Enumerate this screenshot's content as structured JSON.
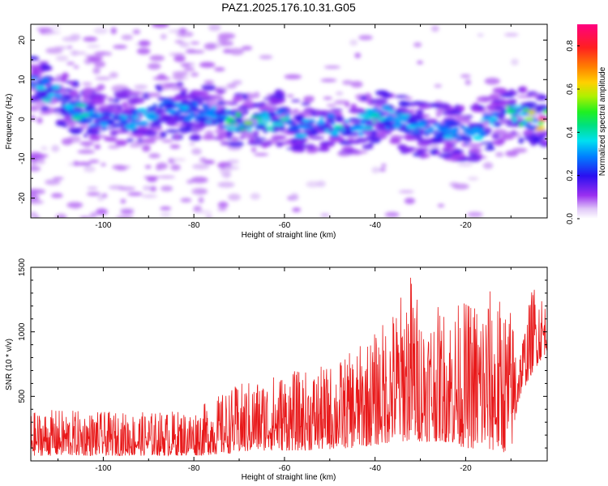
{
  "title": "PAZ1.2025.176.10.31.G05",
  "colors": {
    "snr_line": "#e8191a",
    "background": "#ffffff",
    "axis": "#000000"
  },
  "chart_data": [
    {
      "type": "heatmap",
      "xlabel": "Height of straight line (km)",
      "ylabel": "Frequency (Hz)",
      "xlim": [
        -116,
        -2
      ],
      "ylim": [
        -25,
        24
      ],
      "xticks": [
        "-100",
        "-80",
        "-60",
        "-40",
        "-20"
      ],
      "yticks": [
        "-20",
        "-10",
        "0",
        "10",
        "20"
      ],
      "xtick_values": [
        -100,
        -80,
        -60,
        -40,
        -20
      ],
      "ytick_values": [
        -20,
        -10,
        0,
        10,
        20
      ],
      "grid": false,
      "colorbar": {
        "label": "Normalized spectral amplitude",
        "range": [
          0,
          0.9
        ],
        "ticks": [
          "0.0",
          "0.2",
          "0.4",
          "0.6",
          "0.8"
        ],
        "tick_values": [
          0.0,
          0.2,
          0.4,
          0.6,
          0.8
        ],
        "colormap": "rainbow"
      },
      "ridge": {
        "points": [
          [
            -114,
            8
          ],
          [
            -110,
            6
          ],
          [
            -104,
            1
          ],
          [
            -100,
            -1
          ],
          [
            -95,
            0
          ],
          [
            -90,
            1
          ],
          [
            -85,
            2
          ],
          [
            -80,
            2
          ],
          [
            -76,
            1
          ],
          [
            -72,
            0
          ],
          [
            -68,
            -1
          ],
          [
            -64,
            0
          ],
          [
            -60,
            0
          ],
          [
            -56,
            -2
          ],
          [
            -52,
            -1
          ],
          [
            -48,
            -2
          ],
          [
            -44,
            -2
          ],
          [
            -40,
            1
          ],
          [
            -36,
            0
          ],
          [
            -32,
            -2
          ],
          [
            -28,
            -3
          ],
          [
            -24,
            -3
          ],
          [
            -20,
            -4
          ],
          [
            -17,
            -3
          ],
          [
            -14,
            0
          ],
          [
            -10,
            2
          ],
          [
            -6,
            0
          ],
          [
            -3,
            0
          ]
        ],
        "peak_amplitudes": [
          0.35,
          0.3,
          0.4,
          0.3,
          0.28,
          0.32,
          0.3,
          0.25,
          0.3,
          0.45,
          0.55,
          0.35,
          0.4,
          0.3,
          0.3,
          0.4,
          0.3,
          0.4,
          0.3,
          0.35,
          0.3,
          0.3,
          0.25,
          0.3,
          0.35,
          0.45,
          0.55,
          0.9
        ]
      }
    },
    {
      "type": "line",
      "xlabel": "Height of straight line (km)",
      "ylabel": "SNR (10 * v/v)",
      "xlim": [
        -116,
        -2
      ],
      "ylim": [
        0,
        1500
      ],
      "xticks": [
        "-100",
        "-80",
        "-60",
        "-40",
        "-20"
      ],
      "yticks": [
        "500",
        "1000",
        "1500"
      ],
      "xtick_values": [
        -100,
        -80,
        -60,
        -40,
        -20
      ],
      "ytick_values": [
        500,
        1000,
        1500
      ],
      "grid": false,
      "series": [
        {
          "x": [
            -116,
            -110,
            -100,
            -90,
            -80,
            -70,
            -65,
            -60,
            -55,
            -50,
            -45,
            -40,
            -35,
            -32,
            -30,
            -25,
            -20,
            -15,
            -10,
            -8,
            -5,
            -3,
            -2
          ],
          "envelope_low": [
            40,
            40,
            40,
            40,
            40,
            60,
            80,
            80,
            80,
            90,
            100,
            120,
            150,
            150,
            150,
            150,
            100,
            80,
            60,
            500,
            700,
            800,
            850
          ],
          "envelope_high": [
            380,
            400,
            380,
            380,
            400,
            600,
            650,
            700,
            700,
            750,
            850,
            1000,
            1250,
            1500,
            1200,
            1200,
            1250,
            1350,
            1200,
            900,
            1400,
            1300,
            1200
          ]
        }
      ]
    }
  ]
}
